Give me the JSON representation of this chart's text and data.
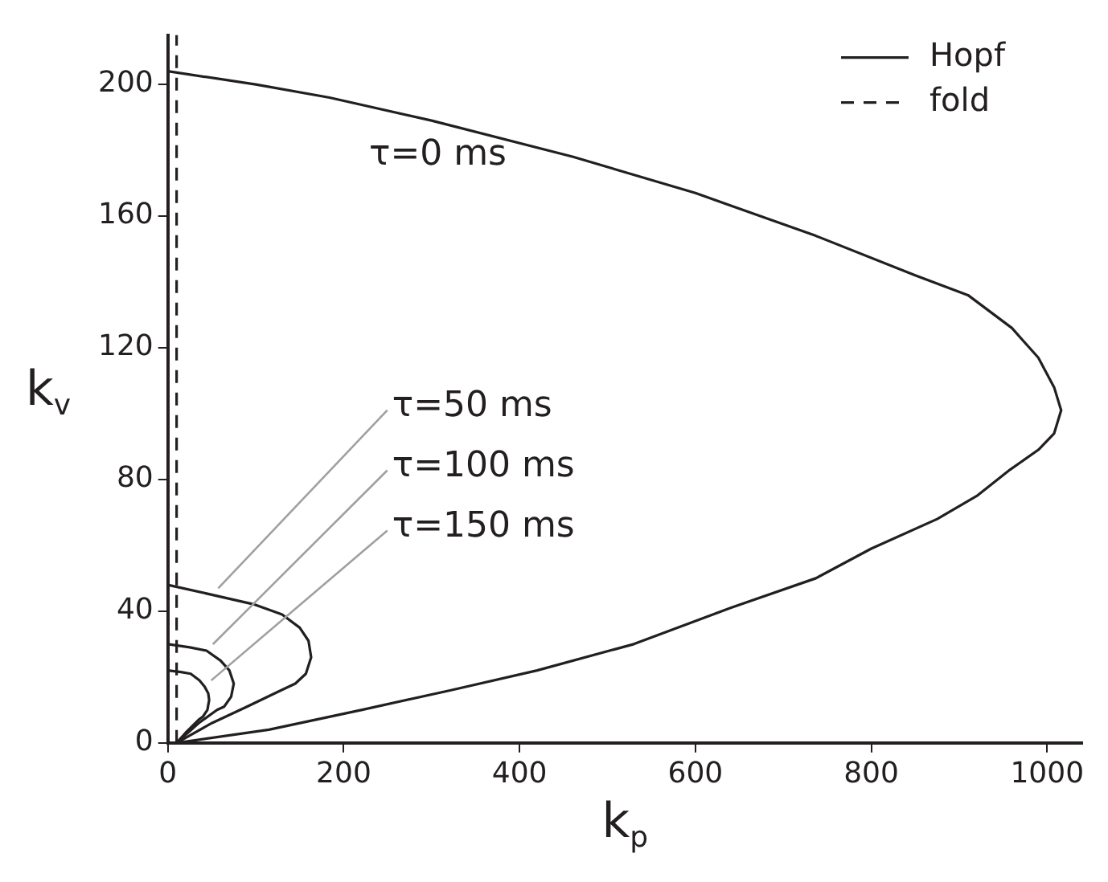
{
  "chart_data": {
    "type": "line",
    "xlabel": "k$_{p}$",
    "ylabel": "k$_{v}$",
    "xlim": [
      0,
      1040
    ],
    "xticks": [
      0,
      200,
      400,
      600,
      800,
      1000
    ],
    "ylim": [
      0,
      215
    ],
    "yticks": [
      0,
      40,
      80,
      120,
      160,
      200
    ],
    "grid": false,
    "legend": "top right",
    "marker": "none",
    "series": [
      {
        "name": "Hopf",
        "color": "#231f20",
        "line_style": "solid",
        "x": [
          0,
          100,
          184,
          300,
          461,
          600,
          737,
          850,
          910,
          960,
          990,
          1008,
          1016,
          1008,
          990,
          958,
          920,
          875,
          800,
          737,
          640,
          530,
          420,
          322,
          220,
          115,
          10
        ],
        "values": [
          204,
          200,
          196,
          189,
          178,
          167,
          154,
          142,
          136,
          126,
          117,
          108,
          101,
          94,
          89,
          83,
          75,
          68,
          59,
          50,
          41,
          30,
          22,
          16,
          10,
          4,
          0
        ]
      },
      {
        "color": "#231f20",
        "line_style": "solid",
        "x": [
          0,
          50,
          99,
          130,
          150,
          160,
          163,
          157,
          145,
          129,
          90,
          50,
          10
        ],
        "values": [
          48,
          45,
          42,
          39,
          35,
          31,
          26,
          21,
          18,
          16,
          11,
          6,
          0
        ]
      },
      {
        "color": "#231f20",
        "line_style": "solid",
        "x": [
          0,
          25,
          44,
          60,
          70,
          75,
          72,
          64,
          56,
          35,
          10
        ],
        "values": [
          30,
          29,
          28,
          25,
          22,
          18,
          14,
          11,
          10,
          6,
          0
        ]
      },
      {
        "color": "#231f20",
        "line_style": "solid",
        "x": [
          0,
          15,
          26,
          36,
          42,
          46,
          47,
          45,
          40,
          35,
          20,
          10
        ],
        "values": [
          22,
          21.5,
          21,
          19,
          17,
          15,
          13,
          10,
          8,
          7,
          3,
          0
        ]
      },
      {
        "name": "fold",
        "color": "#231f20",
        "line_style": "dashed",
        "x": [
          10,
          10
        ],
        "values": [
          0,
          215
        ]
      }
    ],
    "annotations": [
      "τ=0 ms",
      {
        "text": "τ=50 ms",
        "x": 50,
        "y": 45
      },
      {
        "text": "τ=100 ms",
        "x": 44,
        "y": 28
      },
      {
        "text": "τ=150 ms",
        "x": 42,
        "y": 17
      }
    ]
  }
}
